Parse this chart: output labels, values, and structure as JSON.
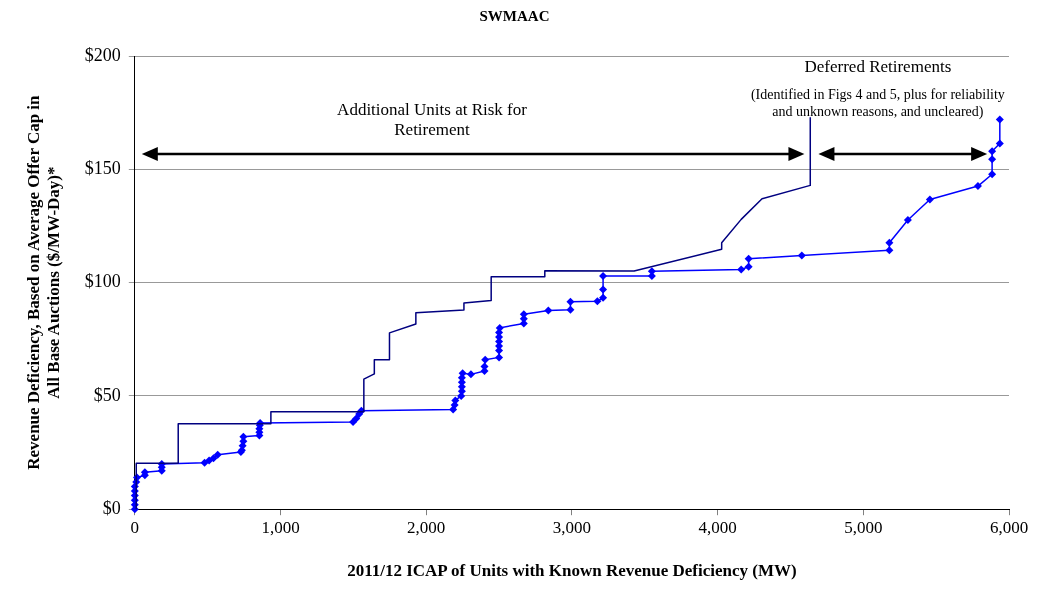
{
  "chart_data": {
    "type": "line",
    "title": "SWMAAC",
    "xlabel": "2011/12 ICAP of Units with Known Revenue Deficiency (MW)",
    "ylabel": "Revenue Deficiency, Based on Average Offer Cap in\nAll Base Auctions ($/MW-Day)*",
    "xlim": [
      0,
      6000
    ],
    "xticks": [
      {
        "value": 0,
        "label": "0"
      },
      {
        "value": 1000,
        "label": "1,000"
      },
      {
        "value": 2000,
        "label": "2,000"
      },
      {
        "value": 3000,
        "label": "3,000"
      },
      {
        "value": 4000,
        "label": "4,000"
      },
      {
        "value": 5000,
        "label": "5,000"
      },
      {
        "value": 6000,
        "label": "6,000"
      }
    ],
    "ylim": [
      0,
      200
    ],
    "yticks": [
      {
        "value": 0,
        "label": "$0"
      },
      {
        "value": 50,
        "label": "$50"
      },
      {
        "value": 100,
        "label": "$100"
      },
      {
        "value": 150,
        "label": "$150"
      },
      {
        "value": 200,
        "label": "$200"
      }
    ],
    "grid": "y",
    "legend": false,
    "line_style": "solid",
    "series": [
      {
        "color": "#000080",
        "marker": "none",
        "x": [
          10,
          10,
          298,
          298,
          934,
          934,
          1572,
          1572,
          1644,
          1644,
          1748,
          1748,
          1929,
          1929,
          2259,
          2259,
          2446,
          2446,
          2814,
          2814,
          3427,
          4028,
          4028,
          4162,
          4305,
          4636,
          4636
        ],
        "values": [
          0,
          20.3,
          20.3,
          37.7,
          37.7,
          43,
          43,
          57.4,
          59.7,
          65.9,
          65.9,
          77.8,
          81.7,
          86.7,
          87.9,
          91,
          92.1,
          102.6,
          102.6,
          105.2,
          105.1,
          114.7,
          117.6,
          127.9,
          137,
          142.9,
          173
        ]
      },
      {
        "color": "#0000ff",
        "marker": "diamond",
        "x": [
          0,
          0,
          0,
          0,
          0,
          0,
          10,
          15,
          69,
          69,
          185,
          185,
          185,
          479,
          510,
          540,
          569,
          728,
          735,
          740,
          745,
          745,
          855,
          855,
          855,
          858,
          860,
          1498,
          1520,
          1540,
          1555,
          2185,
          2195,
          2200,
          2240,
          2245,
          2245,
          2245,
          2245,
          2250,
          2307,
          2400,
          2400,
          2405,
          2500,
          2500,
          2500,
          2500,
          2500,
          2500,
          2505,
          2670,
          2670,
          2670,
          2838,
          2990,
          2990,
          3175,
          3214,
          3214,
          3214,
          3549,
          3549,
          4162,
          4213,
          4213,
          4578,
          5179,
          5179,
          5306,
          5457,
          5787,
          5884,
          5884,
          5884,
          5937,
          5937
        ],
        "values": [
          0,
          2,
          4,
          6,
          8,
          10,
          12,
          14,
          15,
          16.3,
          17,
          18.5,
          20,
          20.5,
          21.5,
          22.5,
          24,
          25.2,
          26,
          28,
          30,
          32,
          32.5,
          34,
          35.5,
          37,
          38,
          38.5,
          40,
          42,
          43.5,
          44,
          46,
          48,
          50,
          52,
          54,
          56,
          58,
          60,
          59.5,
          61,
          63,
          66,
          67,
          70,
          72,
          74,
          76,
          78,
          80,
          82,
          84,
          86,
          87.7,
          88,
          91.5,
          91.8,
          93.3,
          97,
          102.9,
          102.9,
          105,
          105.8,
          107,
          110.5,
          112,
          114.3,
          117.6,
          127.6,
          136.7,
          142.6,
          147.8,
          154.4,
          158,
          161.4,
          172
        ]
      }
    ],
    "annotations": [
      "Additional Units at Risk for\nRetirement",
      "Deferred Retirements",
      "(Identified in Figs 4 and 5, plus for reliability\nand unknown reasons, and uncleared)"
    ]
  }
}
